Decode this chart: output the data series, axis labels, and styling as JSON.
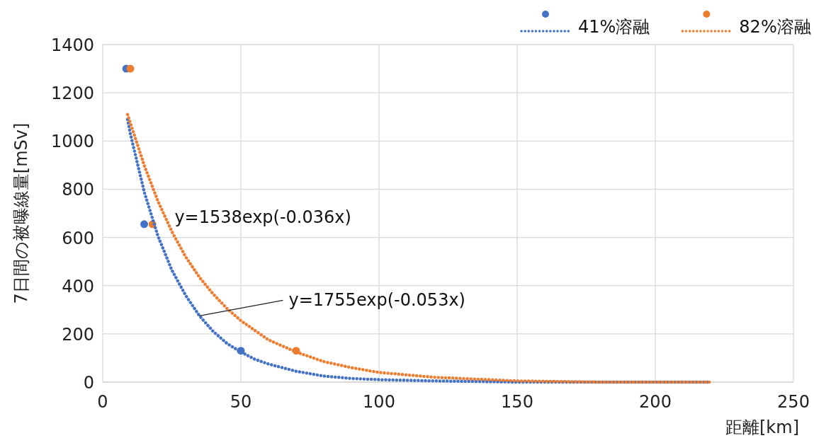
{
  "chart_data": {
    "type": "scatter",
    "xlabel": "距離[km]",
    "ylabel": "7日間の被曝線量[mSv]",
    "xlim": [
      0,
      250
    ],
    "ylim": [
      0,
      1400
    ],
    "xticks": [
      0,
      50,
      100,
      150,
      200,
      250
    ],
    "yticks": [
      0,
      200,
      400,
      600,
      800,
      1000,
      1200,
      1400
    ],
    "grid": true,
    "legend": "top right",
    "annotations": [
      "y=1538exp(-0.036x)",
      {
        "text": "y=1755exp(-0.053x)",
        "x": 35,
        "y": 275
      }
    ],
    "series": [
      {
        "name": "41%溶融",
        "color": "#4472c4",
        "marker": "circle",
        "x": [
          8.5,
          15,
          50
        ],
        "values": [
          1300,
          655,
          130
        ]
      },
      {
        "name": "82%溶融",
        "color": "#ed7d31",
        "marker": "circle",
        "x": [
          10,
          18,
          70
        ],
        "values": [
          1300,
          655,
          130
        ]
      },
      {
        "type": "line",
        "line_style": "dotted",
        "color": "#4472c4",
        "x": [
          9,
          10,
          15,
          20,
          25,
          30,
          35,
          40,
          45,
          50,
          55,
          60,
          70,
          80,
          90,
          100,
          120,
          150,
          180,
          220
        ],
        "values": [
          1090,
          1030,
          790,
          605,
          465,
          360,
          275,
          210,
          160,
          125,
          95,
          75,
          45,
          25,
          15,
          10,
          5,
          0,
          0,
          0
        ]
      },
      {
        "type": "line",
        "line_style": "dotted",
        "color": "#ed7d31",
        "x": [
          9,
          10,
          15,
          20,
          25,
          30,
          35,
          40,
          45,
          50,
          60,
          70,
          80,
          90,
          100,
          120,
          150,
          180,
          220
        ],
        "values": [
          1110,
          1075,
          900,
          750,
          625,
          520,
          435,
          365,
          305,
          255,
          175,
          125,
          85,
          60,
          40,
          20,
          5,
          0,
          0
        ]
      }
    ]
  }
}
